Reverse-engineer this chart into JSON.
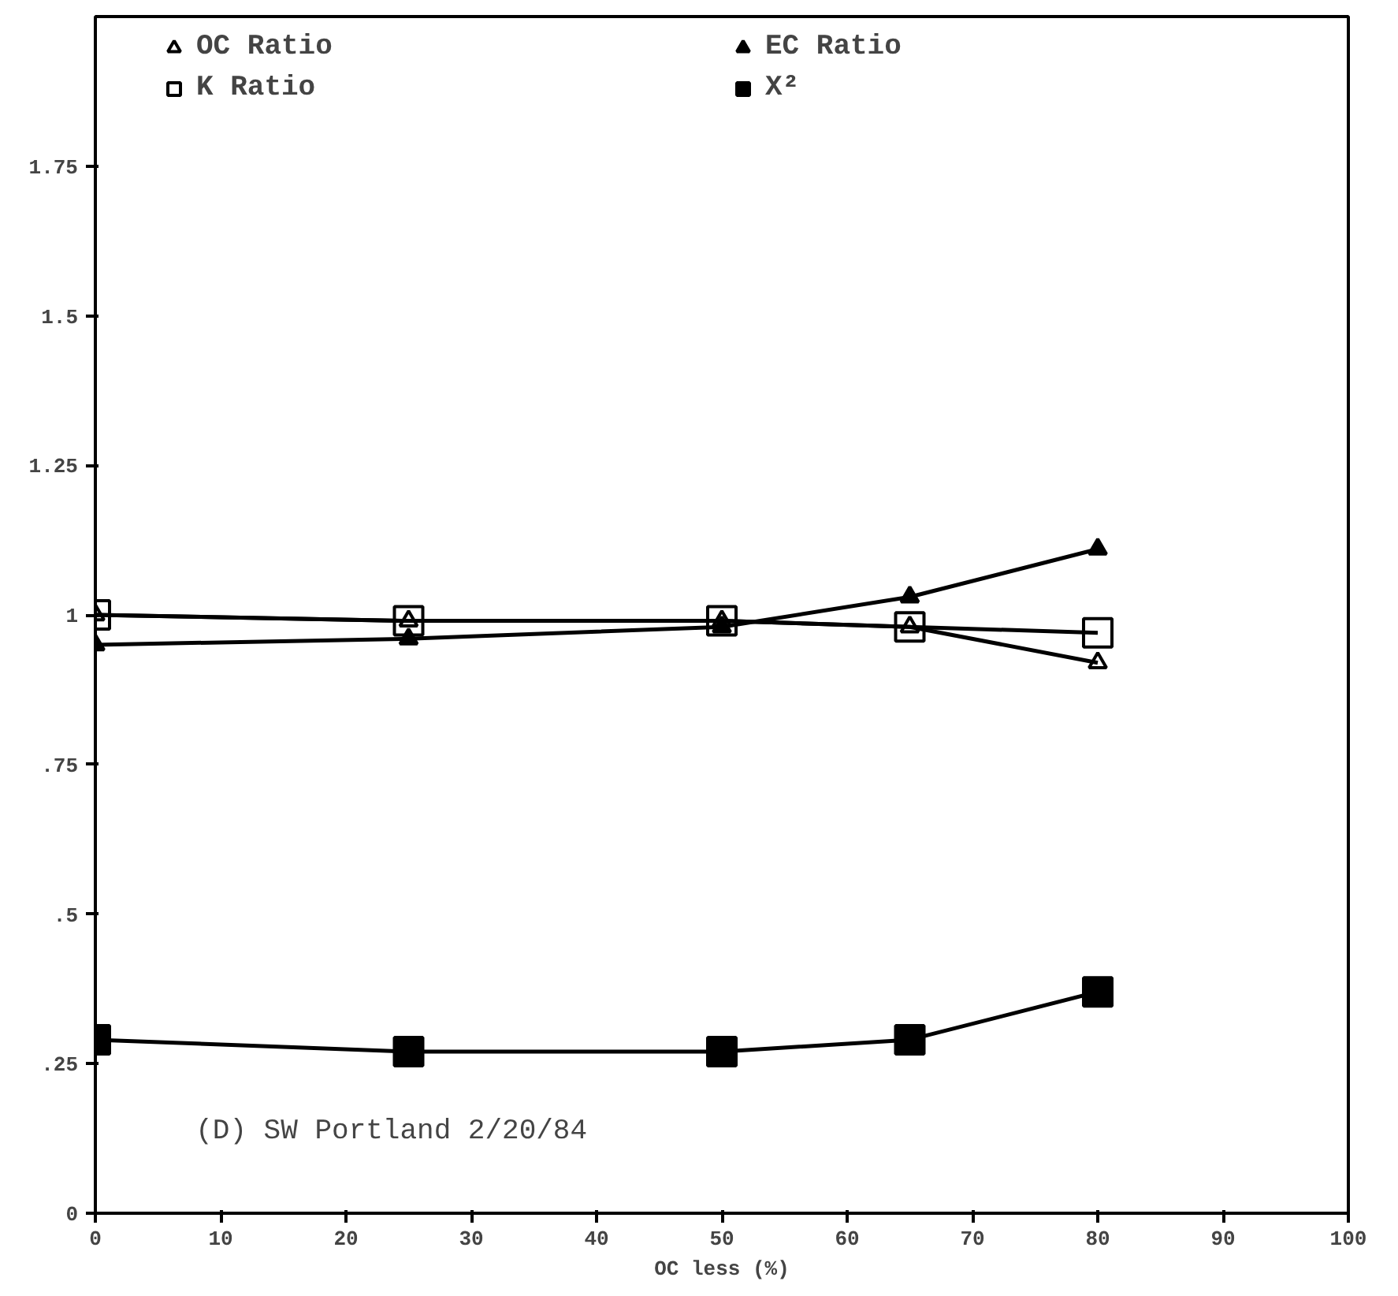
{
  "chart_data": {
    "type": "line",
    "xlabel": "OC less (%)",
    "x": [
      0,
      25,
      50,
      65,
      80
    ],
    "series": [
      {
        "name": "OC Ratio",
        "color": "#000000",
        "marker": "triangle",
        "values": [
          1.0,
          0.99,
          0.99,
          0.98,
          0.92
        ]
      },
      {
        "name": "EC Ratio",
        "color": "#000000",
        "marker": "triangle",
        "values": [
          0.95,
          0.96,
          0.98,
          1.03,
          1.11
        ]
      },
      {
        "name": "K Ratio",
        "color": "#000000",
        "marker": "square",
        "values": [
          1.0,
          0.99,
          0.99,
          0.98,
          0.97
        ]
      },
      {
        "name": "X²",
        "color": "#000000",
        "marker": "square",
        "values": [
          0.29,
          0.27,
          0.27,
          0.29,
          0.37
        ]
      }
    ],
    "xlim": [
      0,
      100
    ],
    "xticks": [
      0,
      10,
      20,
      30,
      40,
      50,
      60,
      70,
      80,
      90,
      100
    ],
    "ylim": [
      0,
      2
    ],
    "yticks": [
      0,
      {
        "value": 0.25,
        "label": ".25"
      },
      {
        "value": 0.5,
        "label": ".5"
      },
      {
        "value": 0.75,
        "label": ".75"
      },
      {
        "value": 1,
        "label": "1"
      },
      1.25,
      1.5,
      1.75
    ],
    "annotations": [
      "(D) SW Portland 2/20/84"
    ],
    "grid": false,
    "legend": "top",
    "line_style": "solid"
  }
}
